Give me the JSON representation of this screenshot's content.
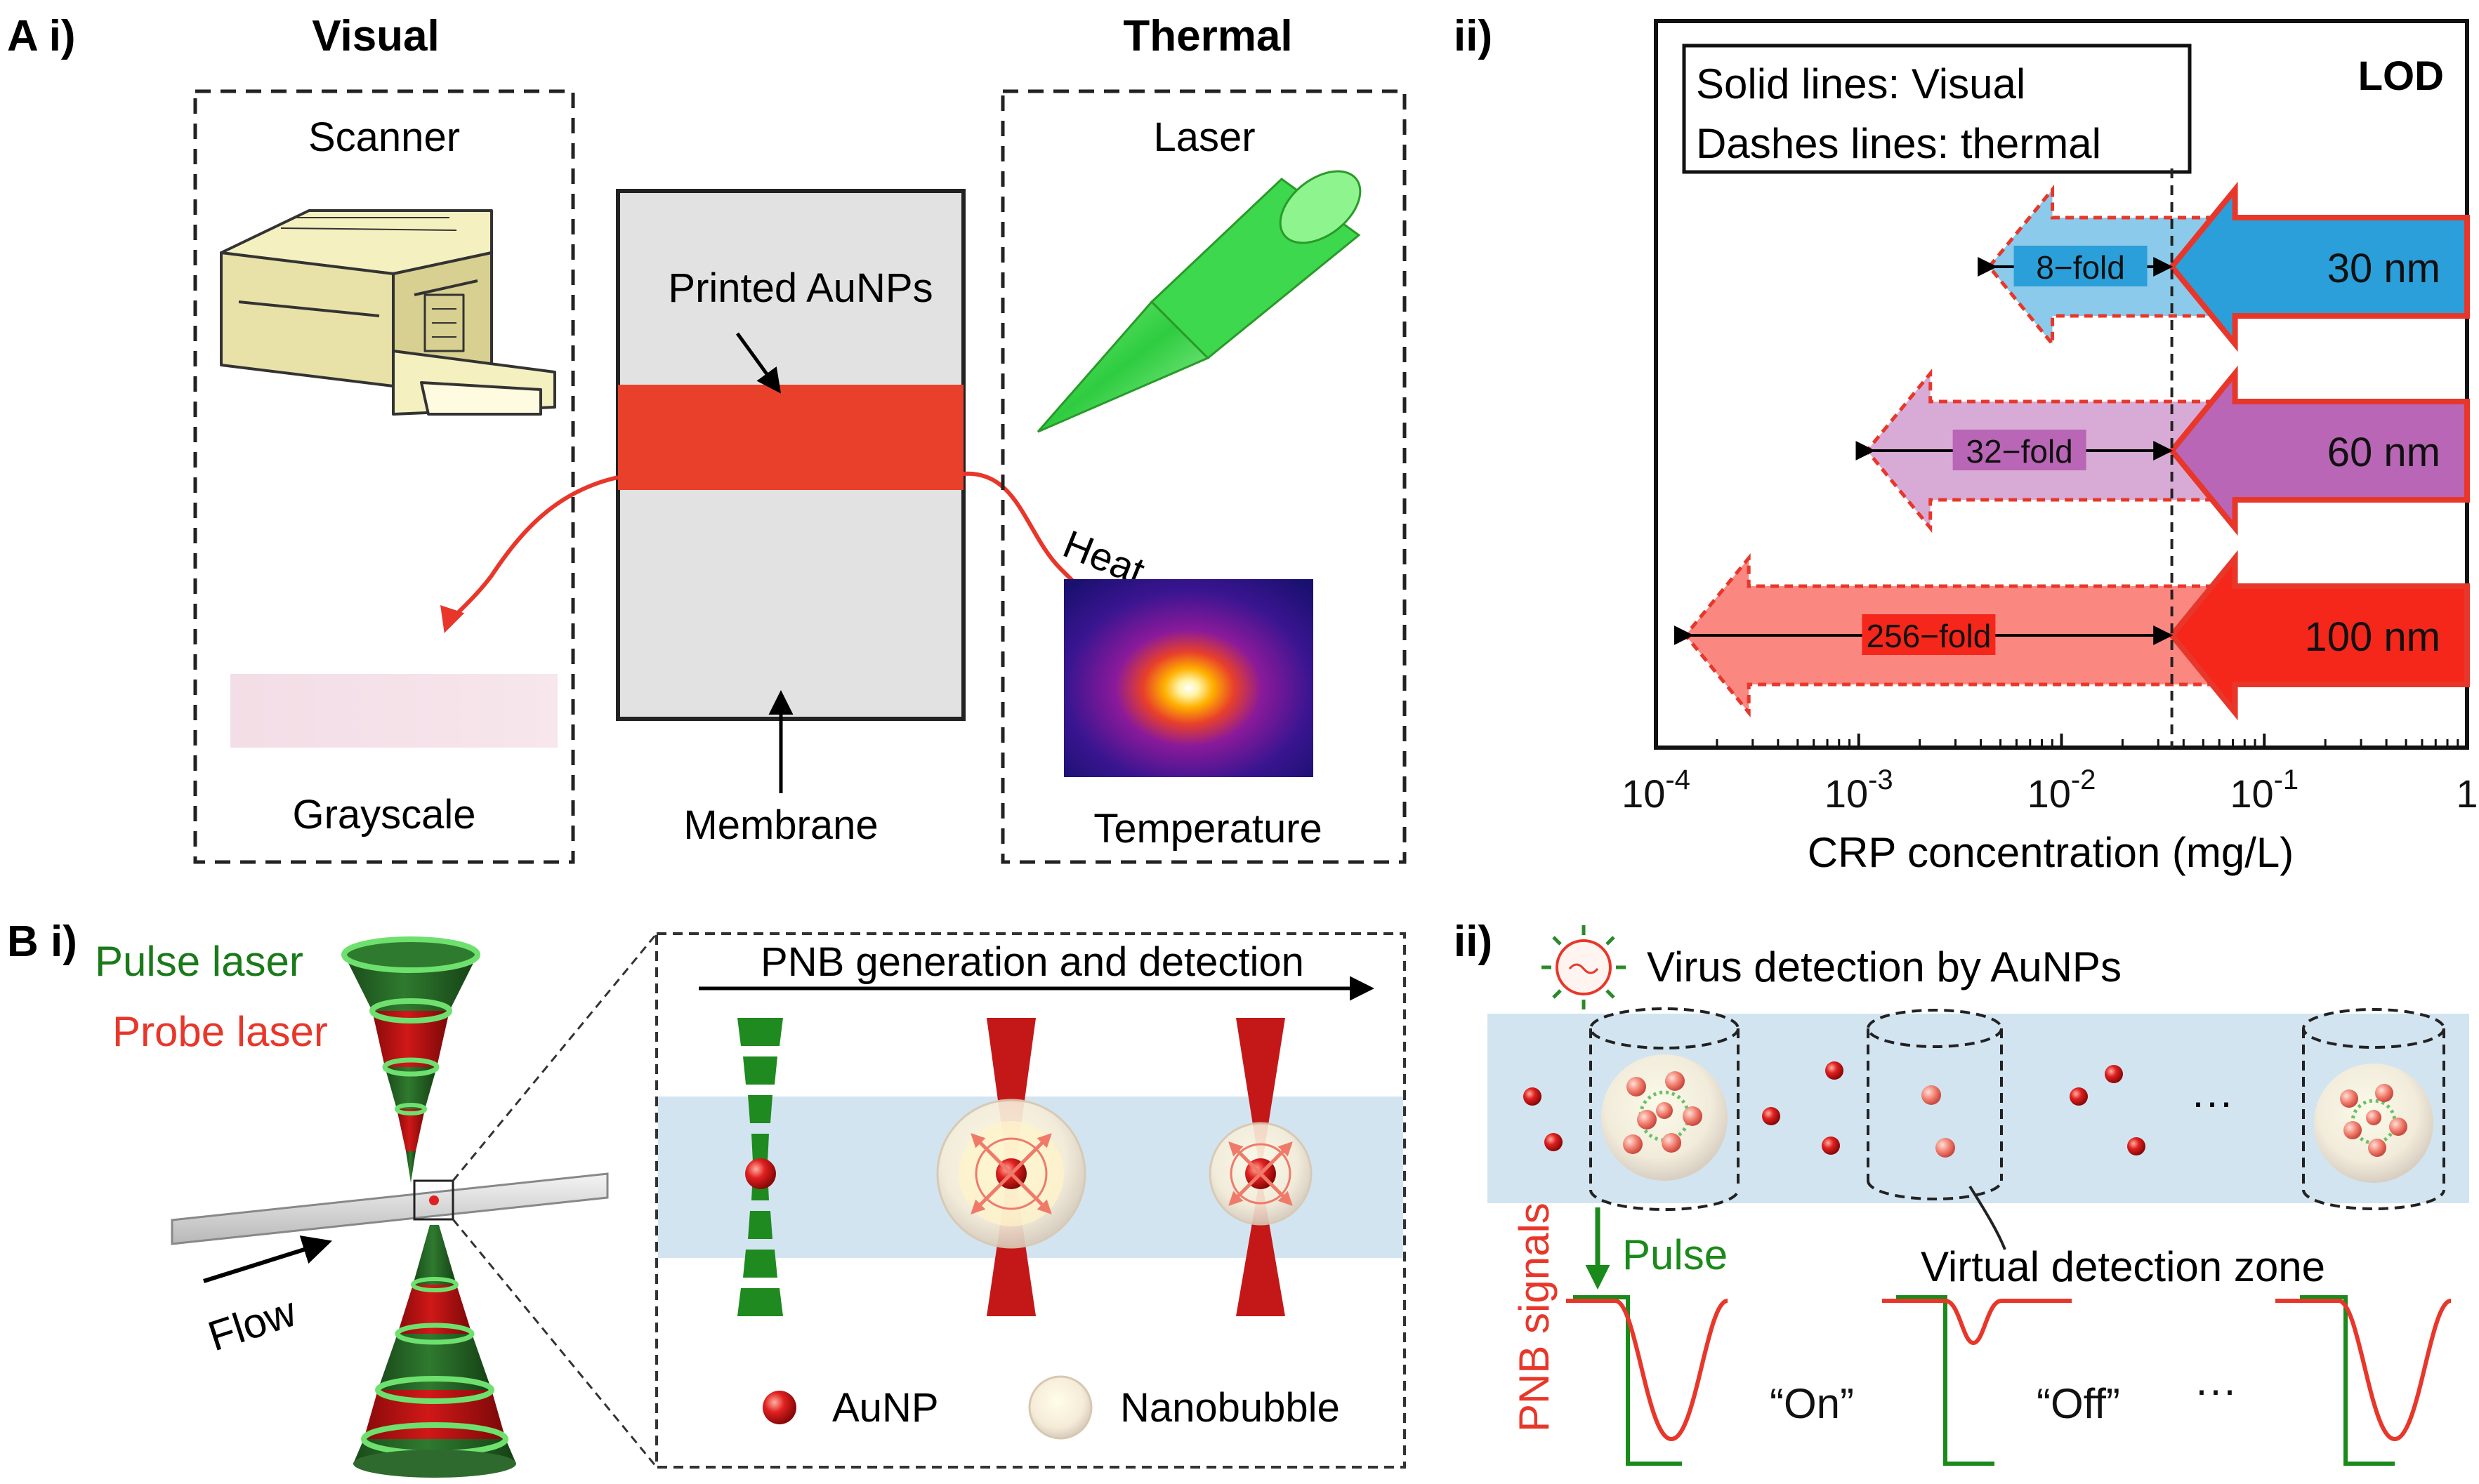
{
  "panelA": {
    "label": "A i)",
    "visual_title": "Visual",
    "thermal_title": "Thermal",
    "scanner_label": "Scanner",
    "grayscale_label": "Grayscale",
    "printed_label": "Printed AuNPs",
    "membrane_label": "Membrane",
    "laser_label": "Laser",
    "heat_label": "Heat",
    "temperature_label": "Temperature"
  },
  "panelAii": {
    "label": "ii)",
    "legend_line1": "Solid lines: Visual",
    "legend_line2": "Dashes lines: thermal",
    "lod_label": "LOD",
    "xlabel": "CRP concentration (mg/L)",
    "ticks": [
      "10",
      "10",
      "10",
      "10",
      "1"
    ],
    "tick_exps": [
      "-4",
      "-3",
      "-2",
      "-1",
      ""
    ]
  },
  "chart_data": {
    "type": "bar",
    "title": "LOD",
    "xlabel": "CRP concentration (mg/L)",
    "xscale": "log",
    "xlim": [
      0.0001,
      1
    ],
    "categories": [
      "30 nm",
      "60 nm",
      "100 nm"
    ],
    "series": [
      {
        "name": "Visual LOD (mg/L)",
        "values": [
          0.035,
          0.035,
          0.035
        ]
      },
      {
        "name": "Thermal LOD (mg/L)",
        "values": [
          0.0044,
          0.0011,
          0.00014
        ]
      }
    ],
    "fold_labels": [
      "8−fold",
      "32−fold",
      "256−fold"
    ],
    "colors": [
      "#2b9fd9",
      "#b866b5",
      "#f5261a"
    ],
    "outline_color": "#e8372a",
    "legend": [
      "Solid lines: Visual",
      "Dashes lines: thermal"
    ]
  },
  "panelB": {
    "label": "B i)",
    "pulse_laser": "Pulse laser",
    "probe_laser": "Probe laser",
    "flow": "Flow",
    "pnb_title": "PNB generation and detection",
    "aunp_legend": "AuNP",
    "nanobubble_legend": "Nanobubble"
  },
  "panelBii": {
    "label": "ii)",
    "virus_title": "Virus detection by AuNPs",
    "pulse": "Pulse",
    "zone": "Virtual detection zone",
    "pnb_signals": "PNB signals",
    "on": "“On”",
    "off": "“Off”",
    "ellipsis1": "···",
    "ellipsis2": "···"
  },
  "colors": {
    "red": "#e8372a",
    "green": "#1a7a1a",
    "dark_green": "#1f5f1f",
    "light_blue": "#d3e4f1",
    "gray_membrane": "#e2e2e2"
  }
}
